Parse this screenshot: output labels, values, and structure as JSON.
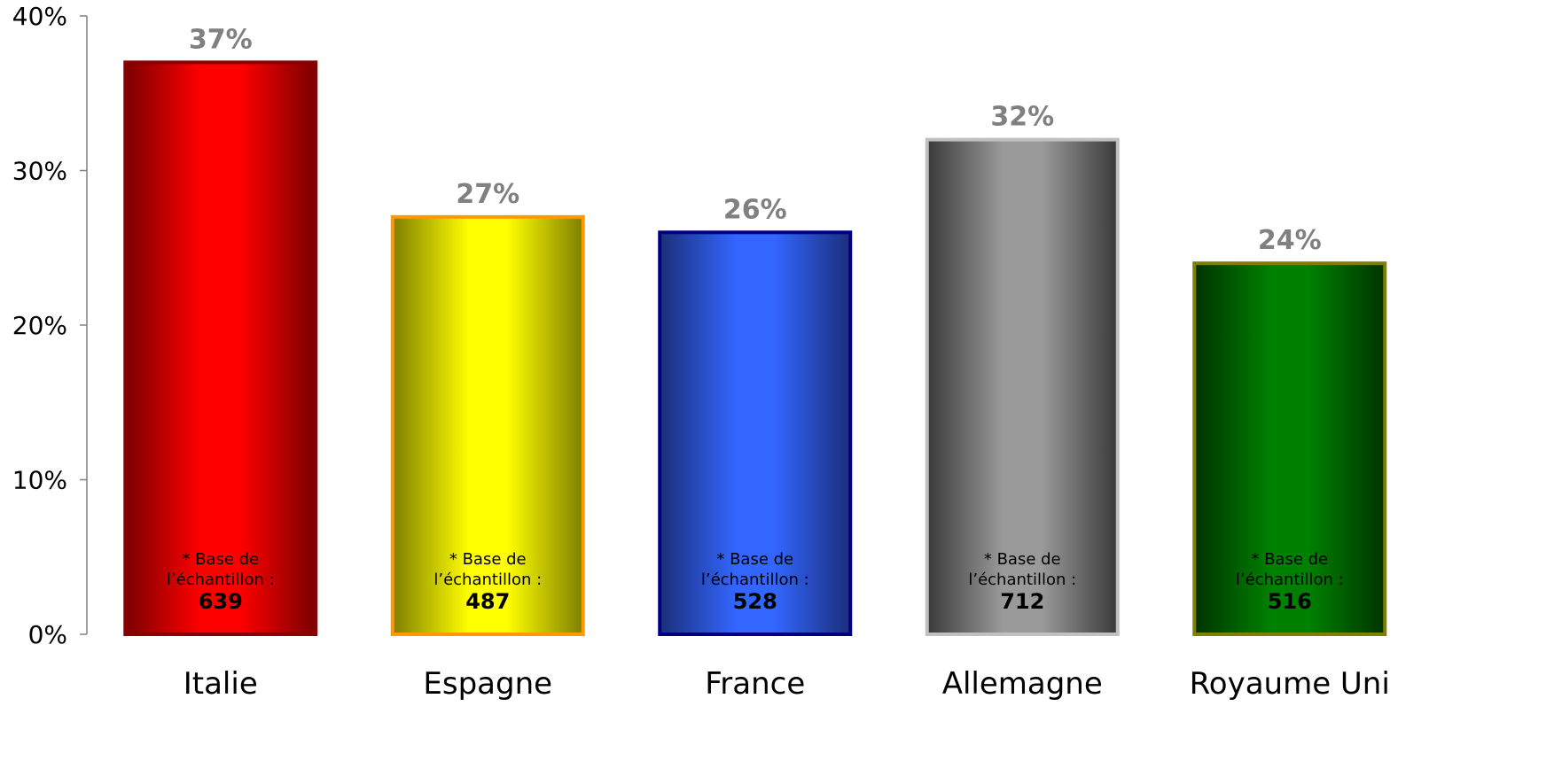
{
  "chart_data": {
    "type": "bar",
    "categories": [
      "Italie",
      "Espagne",
      "France",
      "Allemagne",
      "Royaume Uni"
    ],
    "values": [
      37,
      27,
      26,
      32,
      24
    ],
    "value_labels": [
      "37%",
      "27%",
      "26%",
      "32%",
      "24%"
    ],
    "sample_label_line1": "* Base de",
    "sample_label_line2": "l’échantillon :",
    "sample_sizes": [
      "639",
      "487",
      "528",
      "712",
      "516"
    ],
    "ylim": [
      0,
      40
    ],
    "yticks": [
      0,
      10,
      20,
      30,
      40
    ],
    "ytick_labels": [
      "0%",
      "10%",
      "20%",
      "30%",
      "40%"
    ],
    "grid": false,
    "legend": "none",
    "bar_colors": [
      {
        "dark": "#7a0000",
        "light": "#ff0000",
        "border": "#8b0000"
      },
      {
        "dark": "#7f7f00",
        "light": "#ffff00",
        "border": "#ff9900"
      },
      {
        "dark": "#1a2f7a",
        "light": "#3366ff",
        "border": "#000080"
      },
      {
        "dark": "#3a3a3a",
        "light": "#9a9a9a",
        "border": "#c0c0c0"
      },
      {
        "dark": "#003300",
        "light": "#008000",
        "border": "#808000"
      }
    ]
  }
}
